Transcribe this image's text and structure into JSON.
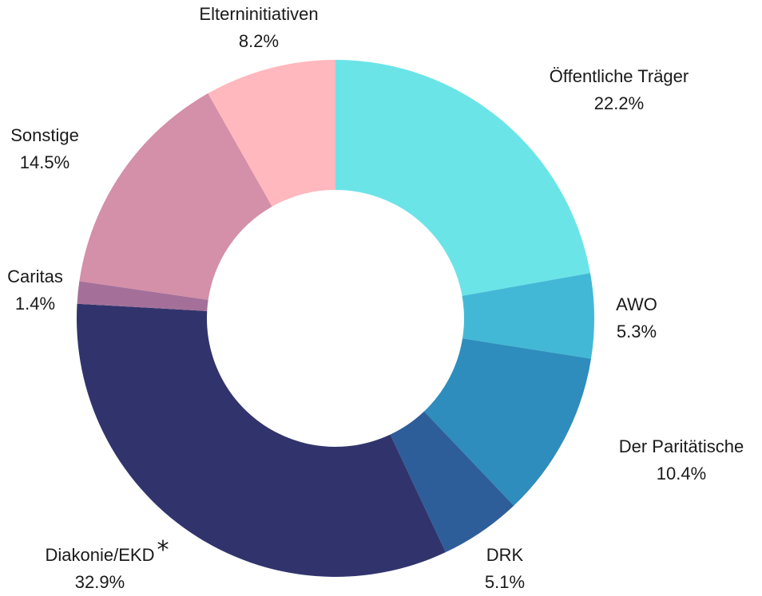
{
  "chart_data": {
    "type": "pie",
    "variant": "donut",
    "start_angle_deg": 0,
    "direction": "clockwise",
    "slices": [
      {
        "label": "Öffentliche Träger",
        "value": 22.2,
        "display": "22.2%",
        "color": "#6BE4E8"
      },
      {
        "label": "AWO",
        "value": 5.3,
        "display": "5.3%",
        "color": "#43B8D6"
      },
      {
        "label": "Der Paritätische",
        "value": 10.4,
        "display": "10.4%",
        "color": "#2E8DBC"
      },
      {
        "label": "DRK",
        "value": 5.1,
        "display": "5.1%",
        "color": "#2E5E99"
      },
      {
        "label": "Diakonie/EKD",
        "value": 32.9,
        "display": "32.9%",
        "color": "#31346C",
        "marker": "*"
      },
      {
        "label": "Caritas",
        "value": 1.4,
        "display": "1.4%",
        "color": "#A4709A"
      },
      {
        "label": "Sonstige",
        "value": 14.5,
        "display": "14.5%",
        "color": "#D48FA9"
      },
      {
        "label": "Elterninitiativen",
        "value": 8.2,
        "display": "8.2%",
        "color": "#FFB8BE"
      }
    ]
  }
}
